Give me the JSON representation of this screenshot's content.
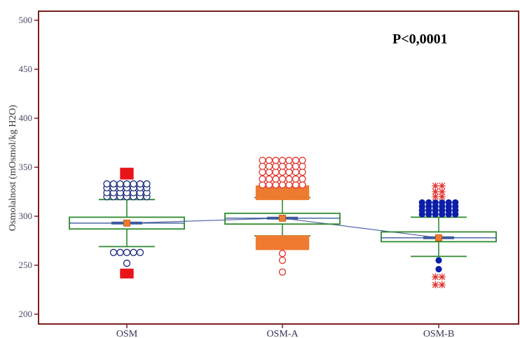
{
  "chart_data": {
    "type": "box",
    "title": "",
    "ylabel": "Osmolalnost (mOsmol/kg H2O)",
    "xlabel": "",
    "ylim": [
      200,
      500
    ],
    "yticks": [
      200,
      250,
      300,
      350,
      400,
      450,
      500
    ],
    "categories": [
      "OSM",
      "OSM-A",
      "OSM-B"
    ],
    "grid": false,
    "annotation": "P<0,0001",
    "mean_line": true,
    "colors": {
      "axis": "#7a1f1f",
      "box": "#2e8b2e",
      "median": "#3c5a9a",
      "mean_marker": "#ee7b30",
      "connect_line": "#5566aa"
    },
    "boxes": [
      {
        "category": "OSM",
        "q1": 287,
        "median": 293,
        "q3": 299,
        "mean": 293,
        "whisker_low": 269,
        "whisker_high": 317,
        "outliers": [
          {
            "y": 320,
            "marker": "circle",
            "color": "#1a2a7a",
            "fill": "none"
          },
          {
            "y": 324,
            "marker": "circle",
            "color": "#1a2a7a",
            "fill": "none"
          },
          {
            "y": 329,
            "marker": "circle",
            "color": "#1a2a7a",
            "fill": "none"
          },
          {
            "y": 333,
            "marker": "circle",
            "color": "#1a2a7a",
            "fill": "none"
          },
          {
            "y": 263,
            "marker": "circle",
            "color": "#1a2a7a",
            "fill": "none"
          },
          {
            "y": 252,
            "marker": "circle",
            "color": "#1a2a7a",
            "fill": "none"
          },
          {
            "y": 341,
            "marker": "square",
            "color": "#e8141c",
            "fill": "#e8141c"
          },
          {
            "y": 346,
            "marker": "square",
            "color": "#e8141c",
            "fill": "#e8141c"
          },
          {
            "y": 243,
            "marker": "square",
            "color": "#e8141c",
            "fill": "#e8141c"
          },
          {
            "y": 240,
            "marker": "square",
            "color": "#e8141c",
            "fill": "#e8141c"
          }
        ]
      },
      {
        "category": "OSM-A",
        "q1": 292,
        "median": 298,
        "q3": 303,
        "mean": 298,
        "whisker_low": 280,
        "whisker_high": 319,
        "outliers": [
          {
            "y": 320,
            "marker": "square",
            "color": "#ee7b30",
            "fill": "#ee7b30"
          },
          {
            "y": 324,
            "marker": "square",
            "color": "#ee7b30",
            "fill": "#ee7b30"
          },
          {
            "y": 328,
            "marker": "square",
            "color": "#ee7b30",
            "fill": "#ee7b30"
          },
          {
            "y": 332,
            "marker": "circle",
            "color": "#e0342e",
            "fill": "none"
          },
          {
            "y": 338,
            "marker": "circle",
            "color": "#e0342e",
            "fill": "none"
          },
          {
            "y": 345,
            "marker": "circle",
            "color": "#e0342e",
            "fill": "none"
          },
          {
            "y": 351,
            "marker": "circle",
            "color": "#e0342e",
            "fill": "none"
          },
          {
            "y": 357,
            "marker": "circle",
            "color": "#e0342e",
            "fill": "none"
          },
          {
            "y": 277,
            "marker": "square",
            "color": "#ee7b30",
            "fill": "#ee7b30"
          },
          {
            "y": 273,
            "marker": "square",
            "color": "#ee7b30",
            "fill": "#ee7b30"
          },
          {
            "y": 269,
            "marker": "square",
            "color": "#ee7b30",
            "fill": "#ee7b30"
          },
          {
            "y": 262,
            "marker": "circle",
            "color": "#e0342e",
            "fill": "none"
          },
          {
            "y": 255,
            "marker": "circle",
            "color": "#e0342e",
            "fill": "none"
          },
          {
            "y": 243,
            "marker": "circle",
            "color": "#e0342e",
            "fill": "none"
          }
        ]
      },
      {
        "category": "OSM-B",
        "q1": 274,
        "median": 278,
        "q3": 284,
        "mean": 278,
        "whisker_low": 259,
        "whisker_high": 299,
        "outliers": [
          {
            "y": 302,
            "marker": "dot",
            "color": "#0b1fa8",
            "fill": "#0b1fa8"
          },
          {
            "y": 306,
            "marker": "dot",
            "color": "#0b1fa8",
            "fill": "#0b1fa8"
          },
          {
            "y": 310,
            "marker": "dot",
            "color": "#0b1fa8",
            "fill": "#0b1fa8"
          },
          {
            "y": 314,
            "marker": "dot",
            "color": "#0b1fa8",
            "fill": "#0b1fa8"
          },
          {
            "y": 320,
            "marker": "star",
            "color": "#e0342e",
            "fill": "none"
          },
          {
            "y": 325,
            "marker": "star",
            "color": "#e0342e",
            "fill": "none"
          },
          {
            "y": 331,
            "marker": "star",
            "color": "#e0342e",
            "fill": "none"
          },
          {
            "y": 255,
            "marker": "dot",
            "color": "#0b1fa8",
            "fill": "#0b1fa8"
          },
          {
            "y": 246,
            "marker": "dot",
            "color": "#0b1fa8",
            "fill": "#0b1fa8"
          },
          {
            "y": 238,
            "marker": "star",
            "color": "#e0342e",
            "fill": "none"
          },
          {
            "y": 230,
            "marker": "star",
            "color": "#e0342e",
            "fill": "none"
          }
        ]
      }
    ]
  }
}
